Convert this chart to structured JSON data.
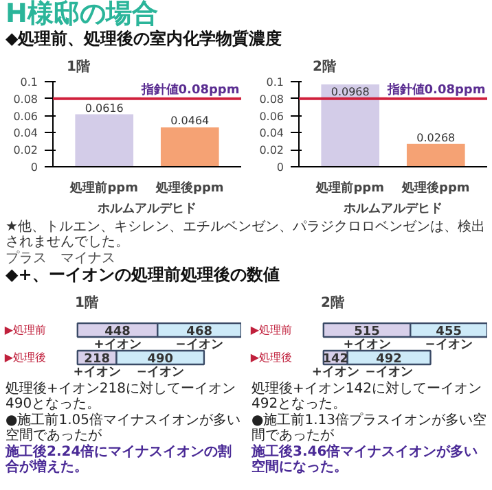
{
  "chart_data": [
    {
      "type": "bar",
      "title": "1階",
      "annotations": [
        "H様邸の場合",
        "◆処理前、処理後の室内化学物質濃度"
      ],
      "xlabel": "ホルムアルデヒド",
      "categories": [
        "処理前ppm",
        "処理後ppm"
      ],
      "values": [
        0.0616,
        0.0464
      ],
      "colors": [
        "#d3cce8",
        "#f5a274"
      ],
      "ylim": [
        0,
        0.1
      ],
      "yticks": [
        0,
        0.02,
        0.04,
        0.06,
        0.08,
        0.1
      ],
      "data_labels": true,
      "ref_lines": [
        {
          "axis": "y",
          "value": 0.08,
          "label": "指針値0.08ppm",
          "color": "#d0203c"
        }
      ]
    },
    {
      "type": "bar",
      "title": "2階",
      "annotations": [
        "★他、トルエン、キシレン、エチルベンゼン、パラジクロロベンゼンは、検出されませんでした。",
        "プラス　マイナス",
        "◆+、ーイオンの処理前処理後の数値"
      ],
      "xlabel": "ホルムアルデヒド",
      "categories": [
        "処理前ppm",
        "処理後ppm"
      ],
      "values": [
        0.0968,
        0.0268
      ],
      "colors": [
        "#d3cce8",
        "#f5a274"
      ],
      "ylim": [
        0,
        0.1
      ],
      "yticks": [
        0,
        0.02,
        0.04,
        0.06,
        0.08,
        0.1
      ],
      "data_labels": true,
      "ref_lines": [
        {
          "axis": "y",
          "value": 0.08,
          "label": "指針値0.08ppm",
          "color": "#d0203c"
        }
      ]
    },
    {
      "type": "bar",
      "orientation": "horizontal",
      "stacked": true,
      "data_labels": true,
      "title": "1階",
      "annotations": [
        "処理後+イオン218に対してーイオン490となった。",
        "●施工前1.05倍マイナスイオンが多い空間であったが",
        "施工後2.24倍にマイナスイオンの割合が増えた。"
      ],
      "categories": [
        "▶処理前",
        "▶処理後"
      ],
      "series": [
        {
          "name": "+イオン",
          "color": "#d8d0ea",
          "values": [
            448,
            218
          ]
        },
        {
          "name": "−イオン",
          "color": "#cdeaf8",
          "values": [
            468,
            490
          ]
        }
      ]
    },
    {
      "type": "bar",
      "orientation": "horizontal",
      "stacked": true,
      "data_labels": true,
      "title": "2階",
      "annotations": [
        "処理後+イオン142に対してーイオン492となった。",
        "●施工前1.13倍プラスイオンが多い空間であったが",
        "施工後3.46倍マイナスイオンが多い空間になった。"
      ],
      "categories": [
        "▶処理前",
        "▶処理後"
      ],
      "series": [
        {
          "name": "+イオン",
          "color": "#d8d0ea",
          "values": [
            515,
            142
          ]
        },
        {
          "name": "−イオン",
          "color": "#cdeaf8",
          "values": [
            455,
            492
          ]
        }
      ]
    }
  ]
}
